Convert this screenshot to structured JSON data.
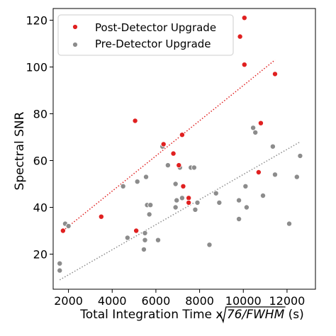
{
  "chart_data": {
    "type": "scatter",
    "xlabel": "Total Integration Time x ",
    "xlabel_sqrt": "76/FWHM",
    "xlabel_unit": " (s)",
    "ylabel": "Spectral SNR",
    "xlim": [
      1300,
      13300
    ],
    "ylim": [
      5,
      125
    ],
    "xticks": [
      2000,
      4000,
      6000,
      8000,
      10000,
      12000
    ],
    "yticks": [
      20,
      40,
      60,
      80,
      100,
      120
    ],
    "grid": false,
    "legend_position": "top-left",
    "series": [
      {
        "name": "Post-Detector Upgrade",
        "color": "#e02020",
        "points": [
          [
            1750,
            30
          ],
          [
            3500,
            36
          ],
          [
            5050,
            77
          ],
          [
            5100,
            30
          ],
          [
            6350,
            67
          ],
          [
            6800,
            63
          ],
          [
            7050,
            58
          ],
          [
            7200,
            71
          ],
          [
            7250,
            49
          ],
          [
            7500,
            44
          ],
          [
            7500,
            42
          ],
          [
            9850,
            113
          ],
          [
            10050,
            121
          ],
          [
            10050,
            101
          ],
          [
            10700,
            55
          ],
          [
            10800,
            76
          ],
          [
            11450,
            97
          ]
        ],
        "trend": {
          "x": [
            1750,
            11450
          ],
          "y": [
            30,
            103
          ]
        }
      },
      {
        "name": "Pre-Detector Upgrade",
        "color": "#8c8c8c",
        "points": [
          [
            1600,
            16
          ],
          [
            1600,
            13
          ],
          [
            1850,
            33
          ],
          [
            2000,
            32
          ],
          [
            4500,
            49
          ],
          [
            4700,
            27
          ],
          [
            5150,
            51
          ],
          [
            5450,
            22
          ],
          [
            5500,
            26
          ],
          [
            5500,
            29
          ],
          [
            5550,
            53
          ],
          [
            5600,
            41
          ],
          [
            5700,
            37
          ],
          [
            5750,
            41
          ],
          [
            6100,
            26
          ],
          [
            6300,
            66
          ],
          [
            6550,
            58
          ],
          [
            6900,
            50
          ],
          [
            6900,
            40
          ],
          [
            6950,
            43
          ],
          [
            7100,
            57
          ],
          [
            7200,
            44
          ],
          [
            7500,
            44
          ],
          [
            7600,
            57
          ],
          [
            7750,
            57
          ],
          [
            7800,
            39
          ],
          [
            7900,
            42
          ],
          [
            8450,
            24
          ],
          [
            8750,
            46
          ],
          [
            8900,
            42
          ],
          [
            9800,
            43
          ],
          [
            9800,
            35
          ],
          [
            10100,
            49
          ],
          [
            10150,
            40
          ],
          [
            10450,
            74
          ],
          [
            10550,
            72
          ],
          [
            10900,
            45
          ],
          [
            11350,
            66
          ],
          [
            11450,
            54
          ],
          [
            12100,
            33
          ],
          [
            12450,
            53
          ],
          [
            12600,
            62
          ]
        ],
        "trend": {
          "x": [
            1600,
            12600
          ],
          "y": [
            9,
            68
          ]
        }
      }
    ]
  }
}
